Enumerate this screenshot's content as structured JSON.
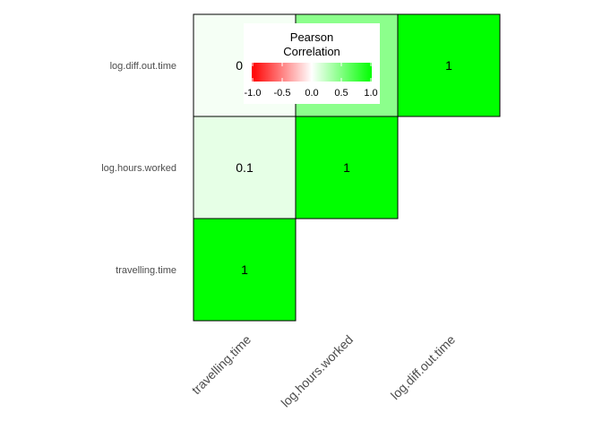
{
  "chart_data": {
    "type": "heatmap",
    "variables": [
      "travelling.time",
      "log.hours.worked",
      "log.diff.out.time"
    ],
    "cells": [
      {
        "x": "travelling.time",
        "y": "travelling.time",
        "value": 1,
        "label": "1"
      },
      {
        "x": "travelling.time",
        "y": "log.hours.worked",
        "value": 0.1,
        "label": "0.1"
      },
      {
        "x": "travelling.time",
        "y": "log.diff.out.time",
        "value": 0.04,
        "label": "0.0"
      },
      {
        "x": "log.hours.worked",
        "y": "log.hours.worked",
        "value": 1,
        "label": "1"
      },
      {
        "x": "log.hours.worked",
        "y": "log.diff.out.time",
        "value": 0.45,
        "label": ""
      },
      {
        "x": "log.diff.out.time",
        "y": "log.diff.out.time",
        "value": 1,
        "label": "1"
      }
    ],
    "legend": {
      "title_line1": "Pearson",
      "title_line2": "Correlation",
      "ticks": [
        "-1.0",
        "-0.5",
        "0.0",
        "0.5",
        "1.0"
      ],
      "tick_values": [
        -1,
        -0.5,
        0,
        0.5,
        1
      ],
      "placement": "top-center"
    },
    "colors": {
      "low": "#ff0000",
      "mid": "#ffffff",
      "high": "#00ff00",
      "cell_border": "#000000",
      "tick_text": "#4d4d4d"
    },
    "limits": [
      -1,
      1
    ],
    "grid": false
  }
}
